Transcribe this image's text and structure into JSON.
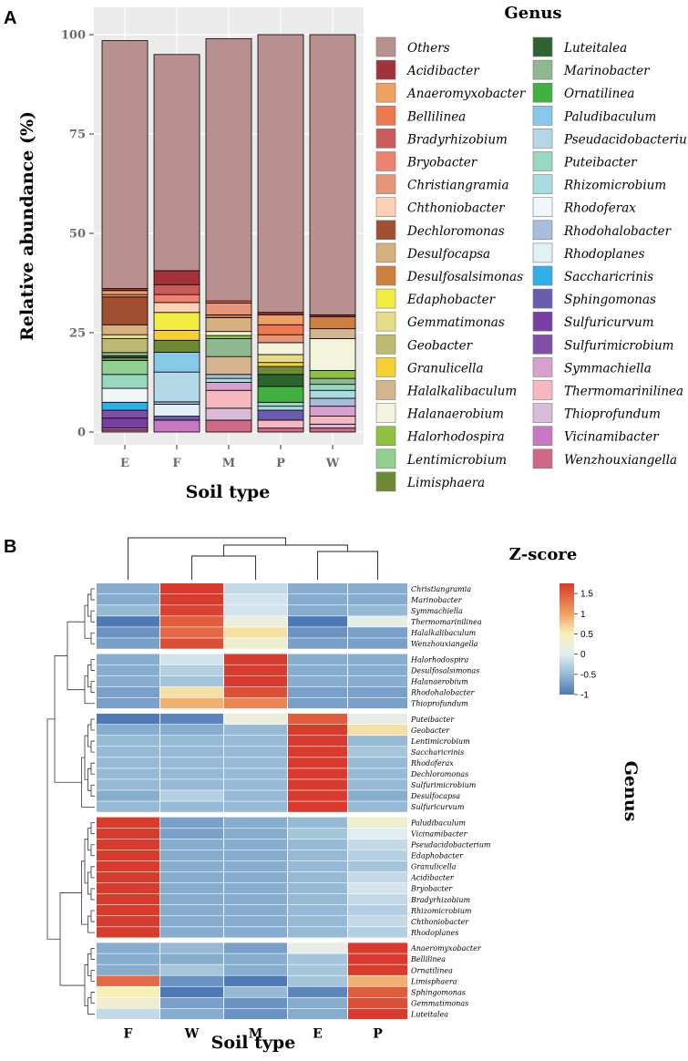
{
  "panels": {
    "a": "A",
    "b": "B"
  },
  "colors": {
    "Others": "#b89090",
    "Acidibacter": "#a4323a",
    "Anaeromyxobacter": "#f0a060",
    "Bellilinea": "#f07850",
    "Bradyrhizobium": "#cc5a5a",
    "Bryobacter": "#f08070",
    "Christiangramia": "#e89478",
    "Chthoniobacter": "#ffd0b4",
    "Dechloromonas": "#a05030",
    "Desulfocapsa": "#d8b080",
    "Desulfosalsimonas": "#cc8040",
    "Edaphobacter": "#f0ec40",
    "Gemmatimonas": "#e6dc88",
    "Geobacter": "#bcba70",
    "Granulicella": "#f4d030",
    "Halalkalibaculum": "#d4b48c",
    "Halanaerobium": "#f4f4dc",
    "Halorhodospira": "#90c040",
    "Lentimicrobium": "#90d090",
    "Limisphaera": "#6e8a34",
    "Luteitalea": "#2e6430",
    "Marinobacter": "#90b890",
    "Ornatilinea": "#40b040",
    "Paludibaculum": "#88c8e8",
    "Pseudacidobacterium": "#b4d8e8",
    "Puteibacter": "#98d8c0",
    "Rhizomicrobium": "#a8dce0",
    "Rhodoferax": "#f0f6fc",
    "Rhodohalobacter": "#a8bcdc",
    "Rhodoplanes": "#e0f0f4",
    "Saccharicrinis": "#30b0e8",
    "Sphingomonas": "#6c5cb0",
    "Sulfuricurvum": "#7840a0",
    "Sulfurimicrobium": "#8050a8",
    "Symmachiella": "#d8a0cc",
    "Thermomarinilinea": "#f8b8c0",
    "Thioprofundum": "#d8bcd8",
    "Vicinamibacter": "#c878c0",
    "Wenzhouxiangella": "#d06888"
  },
  "bar_chart": {
    "chart_data": {
      "type": "bar",
      "stacked": true,
      "categories": [
        "E",
        "F",
        "M",
        "P",
        "W"
      ],
      "ylabel": "Relative abundance (%)",
      "xlabel": "Soil type",
      "ylim": [
        0,
        100
      ],
      "yticks": [
        "0",
        "25",
        "50",
        "75",
        "100"
      ],
      "legend_title": "Genus",
      "legend": [
        "Others",
        "Acidibacter",
        "Anaeromyxobacter",
        "Bellilinea",
        "Bradyrhizobium",
        "Bryobacter",
        "Christiangramia",
        "Chthoniobacter",
        "Dechloromonas",
        "Desulfocapsa",
        "Desulfosalsimonas",
        "Edaphobacter",
        "Gemmatimonas",
        "Geobacter",
        "Granulicella",
        "Halalkalibaculum",
        "Halanaerobium",
        "Halorhodospira",
        "Lentimicrobium",
        "Limisphaera",
        "Luteitalea",
        "Marinobacter",
        "Ornatilinea",
        "Paludibaculum",
        "Pseudacidobacterium",
        "Puteibacter",
        "Rhizomicrobium",
        "Rhodoferax",
        "Rhodohalobacter",
        "Rhodoplanes",
        "Saccharicrinis",
        "Sphingomonas",
        "Sulfuricurvum",
        "Sulfurimicrobium",
        "Symmachiella",
        "Thermomarinilinea",
        "Thioprofundum",
        "Vicinamibacter",
        "Wenzhouxiangella"
      ],
      "stacks": {
        "E": [
          [
            "Wenzhouxiangella",
            0.5
          ],
          [
            "Vicinamibacter",
            0.5
          ],
          [
            "Sulfuricurvum",
            2.5
          ],
          [
            "Sulfurimicrobium",
            2.0
          ],
          [
            "Saccharicrinis",
            2.0
          ],
          [
            "Rhodoferax",
            3.5
          ],
          [
            "Puteibacter",
            3.5
          ],
          [
            "Lentimicrobium",
            3.5
          ],
          [
            "Limisphaera",
            0.7
          ],
          [
            "Luteitalea",
            0.5
          ],
          [
            "Marinobacter",
            0.8
          ],
          [
            "Geobacter",
            3.5
          ],
          [
            "Gemmatimonas",
            1.0
          ],
          [
            "Desulfocapsa",
            2.5
          ],
          [
            "Dechloromonas",
            7.0
          ],
          [
            "Christiangramia",
            0.6
          ],
          [
            "Anaeromyxobacter",
            1.0
          ],
          [
            "Acidibacter",
            0.5
          ],
          [
            "Others",
            62.4
          ]
        ],
        "F": [
          [
            "Vicinamibacter",
            3.0
          ],
          [
            "Sphingomonas",
            1.0
          ],
          [
            "Rhodoplanes",
            3.0
          ],
          [
            "Rhodohalobacter",
            0.6
          ],
          [
            "Pseudacidobacterium",
            7.5
          ],
          [
            "Paludibaculum",
            5.0
          ],
          [
            "Limisphaera",
            3.0
          ],
          [
            "Granulicella",
            2.5
          ],
          [
            "Edaphobacter",
            4.5
          ],
          [
            "Chthoniobacter",
            2.5
          ],
          [
            "Bryobacter",
            2.0
          ],
          [
            "Bradyrhizobium",
            2.5
          ],
          [
            "Acidibacter",
            3.5
          ],
          [
            "Others",
            54.4
          ]
        ],
        "M": [
          [
            "Wenzhouxiangella",
            3.0
          ],
          [
            "Thioprofundum",
            3.0
          ],
          [
            "Thermomarinilinea",
            4.5
          ],
          [
            "Symmachiella",
            2.0
          ],
          [
            "Rhizomicrobium",
            1.0
          ],
          [
            "Rhodohalobacter",
            1.0
          ],
          [
            "Halalkalibaculum",
            4.5
          ],
          [
            "Marinobacter",
            4.5
          ],
          [
            "Halorhodospira",
            0.8
          ],
          [
            "Halanaerobium",
            1.0
          ],
          [
            "Desulfocapsa",
            3.5
          ],
          [
            "Desulfosalsimonas",
            0.7
          ],
          [
            "Christiangramia",
            3.0
          ],
          [
            "Bellilinea",
            0.5
          ],
          [
            "Others",
            66.0
          ]
        ],
        "P": [
          [
            "Wenzhouxiangella",
            1.0
          ],
          [
            "Thermomarinilinea",
            2.0
          ],
          [
            "Sphingomonas",
            2.5
          ],
          [
            "Rhizomicrobium",
            1.0
          ],
          [
            "Puteibacter",
            1.0
          ],
          [
            "Ornatilinea",
            4.0
          ],
          [
            "Luteitalea",
            3.0
          ],
          [
            "Limisphaera",
            2.0
          ],
          [
            "Granulicella",
            1.0
          ],
          [
            "Gemmatimonas",
            2.0
          ],
          [
            "Halanaerobium",
            3.0
          ],
          [
            "Christiangramia",
            2.0
          ],
          [
            "Bellilinea",
            2.5
          ],
          [
            "Anaeromyxobacter",
            2.5
          ],
          [
            "Acidibacter",
            0.6
          ],
          [
            "Others",
            69.9
          ]
        ],
        "W": [
          [
            "Wenzhouxiangella",
            1.0
          ],
          [
            "Thioprofundum",
            1.0
          ],
          [
            "Thermomarinilinea",
            2.0
          ],
          [
            "Symmachiella",
            2.5
          ],
          [
            "Rhodohalobacter",
            2.0
          ],
          [
            "Rhizomicrobium",
            2.0
          ],
          [
            "Puteibacter",
            1.5
          ],
          [
            "Marinobacter",
            1.5
          ],
          [
            "Halorhodospira",
            2.0
          ],
          [
            "Halanaerobium",
            8.0
          ],
          [
            "Halalkalibaculum",
            2.5
          ],
          [
            "Desulfosalsimonas",
            3.0
          ],
          [
            "Acidibacter",
            0.5
          ],
          [
            "Others",
            70.5
          ]
        ]
      }
    }
  },
  "heatmap": {
    "chart_data": {
      "type": "heatmap",
      "columns": [
        "F",
        "W",
        "M",
        "E",
        "P"
      ],
      "xlabel": "Soil type",
      "ylabel": "Genus",
      "colorbar_title": "Z-score",
      "colorbar_ticks": [
        "1.5",
        "1",
        "0.5",
        "0",
        "-0.5",
        "-1"
      ],
      "colorbar_range": [
        -1,
        1.75
      ],
      "row_groups": [
        {
          "rows": [
            {
              "genus": "Christiangramia",
              "z": [
                -0.6,
                1.75,
                -0.2,
                -0.6,
                -0.6
              ]
            },
            {
              "genus": "Marinobacter",
              "z": [
                -0.6,
                1.75,
                -0.1,
                -0.6,
                -0.6
              ]
            },
            {
              "genus": "Symmachiella",
              "z": [
                -0.5,
                1.7,
                -0.1,
                -0.6,
                -0.5
              ]
            },
            {
              "genus": "Thermomarinilinea",
              "z": [
                -1.0,
                1.5,
                0.2,
                -1.0,
                0.1
              ]
            },
            {
              "genus": "Halalkalibaculum",
              "z": [
                -0.8,
                1.4,
                0.6,
                -0.8,
                -0.7
              ]
            },
            {
              "genus": "Wenzhouxiangella",
              "z": [
                -0.7,
                1.6,
                0.3,
                -0.7,
                -0.7
              ]
            }
          ]
        },
        {
          "rows": [
            {
              "genus": "Halorhodospira",
              "z": [
                -0.6,
                -0.1,
                1.75,
                -0.6,
                -0.6
              ]
            },
            {
              "genus": "Desulfosalsimonas",
              "z": [
                -0.6,
                -0.3,
                1.75,
                -0.6,
                -0.6
              ]
            },
            {
              "genus": "Halanaerobium",
              "z": [
                -0.6,
                -0.4,
                1.75,
                -0.6,
                -0.6
              ]
            },
            {
              "genus": "Rhodohalobacter",
              "z": [
                -0.7,
                0.6,
                1.6,
                -0.7,
                -0.7
              ]
            },
            {
              "genus": "Thioprofundum",
              "z": [
                -0.7,
                0.9,
                1.2,
                -0.7,
                -0.7
              ]
            }
          ]
        },
        {
          "rows": [
            {
              "genus": "Puteibacter",
              "z": [
                -1.0,
                -0.9,
                0.2,
                1.5,
                0.1
              ]
            },
            {
              "genus": "Geobacter",
              "z": [
                -0.6,
                -0.6,
                -0.5,
                1.75,
                0.6
              ]
            },
            {
              "genus": "Lentimicrobium",
              "z": [
                -0.5,
                -0.5,
                -0.5,
                1.75,
                -0.5
              ]
            },
            {
              "genus": "Saccharicrinis",
              "z": [
                -0.5,
                -0.5,
                -0.5,
                1.75,
                -0.4
              ]
            },
            {
              "genus": "Rhodoferax",
              "z": [
                -0.5,
                -0.5,
                -0.5,
                1.75,
                -0.5
              ]
            },
            {
              "genus": "Dechloromonas",
              "z": [
                -0.5,
                -0.5,
                -0.5,
                1.75,
                -0.5
              ]
            },
            {
              "genus": "Sulfurimicrobium",
              "z": [
                -0.5,
                -0.5,
                -0.5,
                1.75,
                -0.5
              ]
            },
            {
              "genus": "Desulfocapsa",
              "z": [
                -0.6,
                -0.3,
                -0.5,
                1.75,
                -0.6
              ]
            },
            {
              "genus": "Sulfuricurvum",
              "z": [
                -0.5,
                -0.5,
                -0.5,
                1.75,
                -0.5
              ]
            }
          ]
        },
        {
          "rows": [
            {
              "genus": "Paludibaculum",
              "z": [
                1.75,
                -0.7,
                -0.6,
                -0.5,
                0.3
              ]
            },
            {
              "genus": "Vicinamibacter",
              "z": [
                1.75,
                -0.7,
                -0.6,
                -0.4,
                0.0
              ]
            },
            {
              "genus": "Pseudacidobacterium",
              "z": [
                1.75,
                -0.6,
                -0.6,
                -0.5,
                -0.2
              ]
            },
            {
              "genus": "Edaphobacter",
              "z": [
                1.75,
                -0.6,
                -0.6,
                -0.5,
                -0.3
              ]
            },
            {
              "genus": "Granulicella",
              "z": [
                1.75,
                -0.6,
                -0.6,
                -0.5,
                -0.4
              ]
            },
            {
              "genus": "Acidibacter",
              "z": [
                1.75,
                -0.6,
                -0.6,
                -0.5,
                -0.2
              ]
            },
            {
              "genus": "Bryobacter",
              "z": [
                1.75,
                -0.6,
                -0.6,
                -0.5,
                -0.1
              ]
            },
            {
              "genus": "Bradyrhizobium",
              "z": [
                1.75,
                -0.6,
                -0.6,
                -0.5,
                -0.2
              ]
            },
            {
              "genus": "Rhizomicrobium",
              "z": [
                1.75,
                -0.6,
                -0.6,
                -0.5,
                -0.3
              ]
            },
            {
              "genus": "Chthoniobacter",
              "z": [
                1.75,
                -0.6,
                -0.6,
                -0.5,
                -0.2
              ]
            },
            {
              "genus": "Rhodoplanes",
              "z": [
                1.75,
                -0.6,
                -0.6,
                -0.5,
                -0.3
              ]
            }
          ]
        },
        {
          "rows": [
            {
              "genus": "Anaeromyxobacter",
              "z": [
                -0.6,
                -0.5,
                -0.7,
                0.1,
                1.75
              ]
            },
            {
              "genus": "Bellilinea",
              "z": [
                -0.6,
                -0.6,
                -0.6,
                -0.4,
                1.75
              ]
            },
            {
              "genus": "Ornatilinea",
              "z": [
                -0.6,
                -0.4,
                -0.6,
                -0.4,
                1.75
              ]
            },
            {
              "genus": "Limisphaera",
              "z": [
                1.4,
                -0.8,
                -1.0,
                -0.4,
                0.9
              ]
            },
            {
              "genus": "Sphingomonas",
              "z": [
                0.5,
                -1.0,
                -0.5,
                -0.9,
                1.5
              ]
            },
            {
              "genus": "Gemmatimonas",
              "z": [
                0.3,
                -0.7,
                -0.8,
                -0.6,
                1.6
              ]
            },
            {
              "genus": "Luteitalea",
              "z": [
                -0.2,
                -0.6,
                -0.8,
                -0.6,
                1.75
              ]
            }
          ]
        }
      ]
    }
  }
}
